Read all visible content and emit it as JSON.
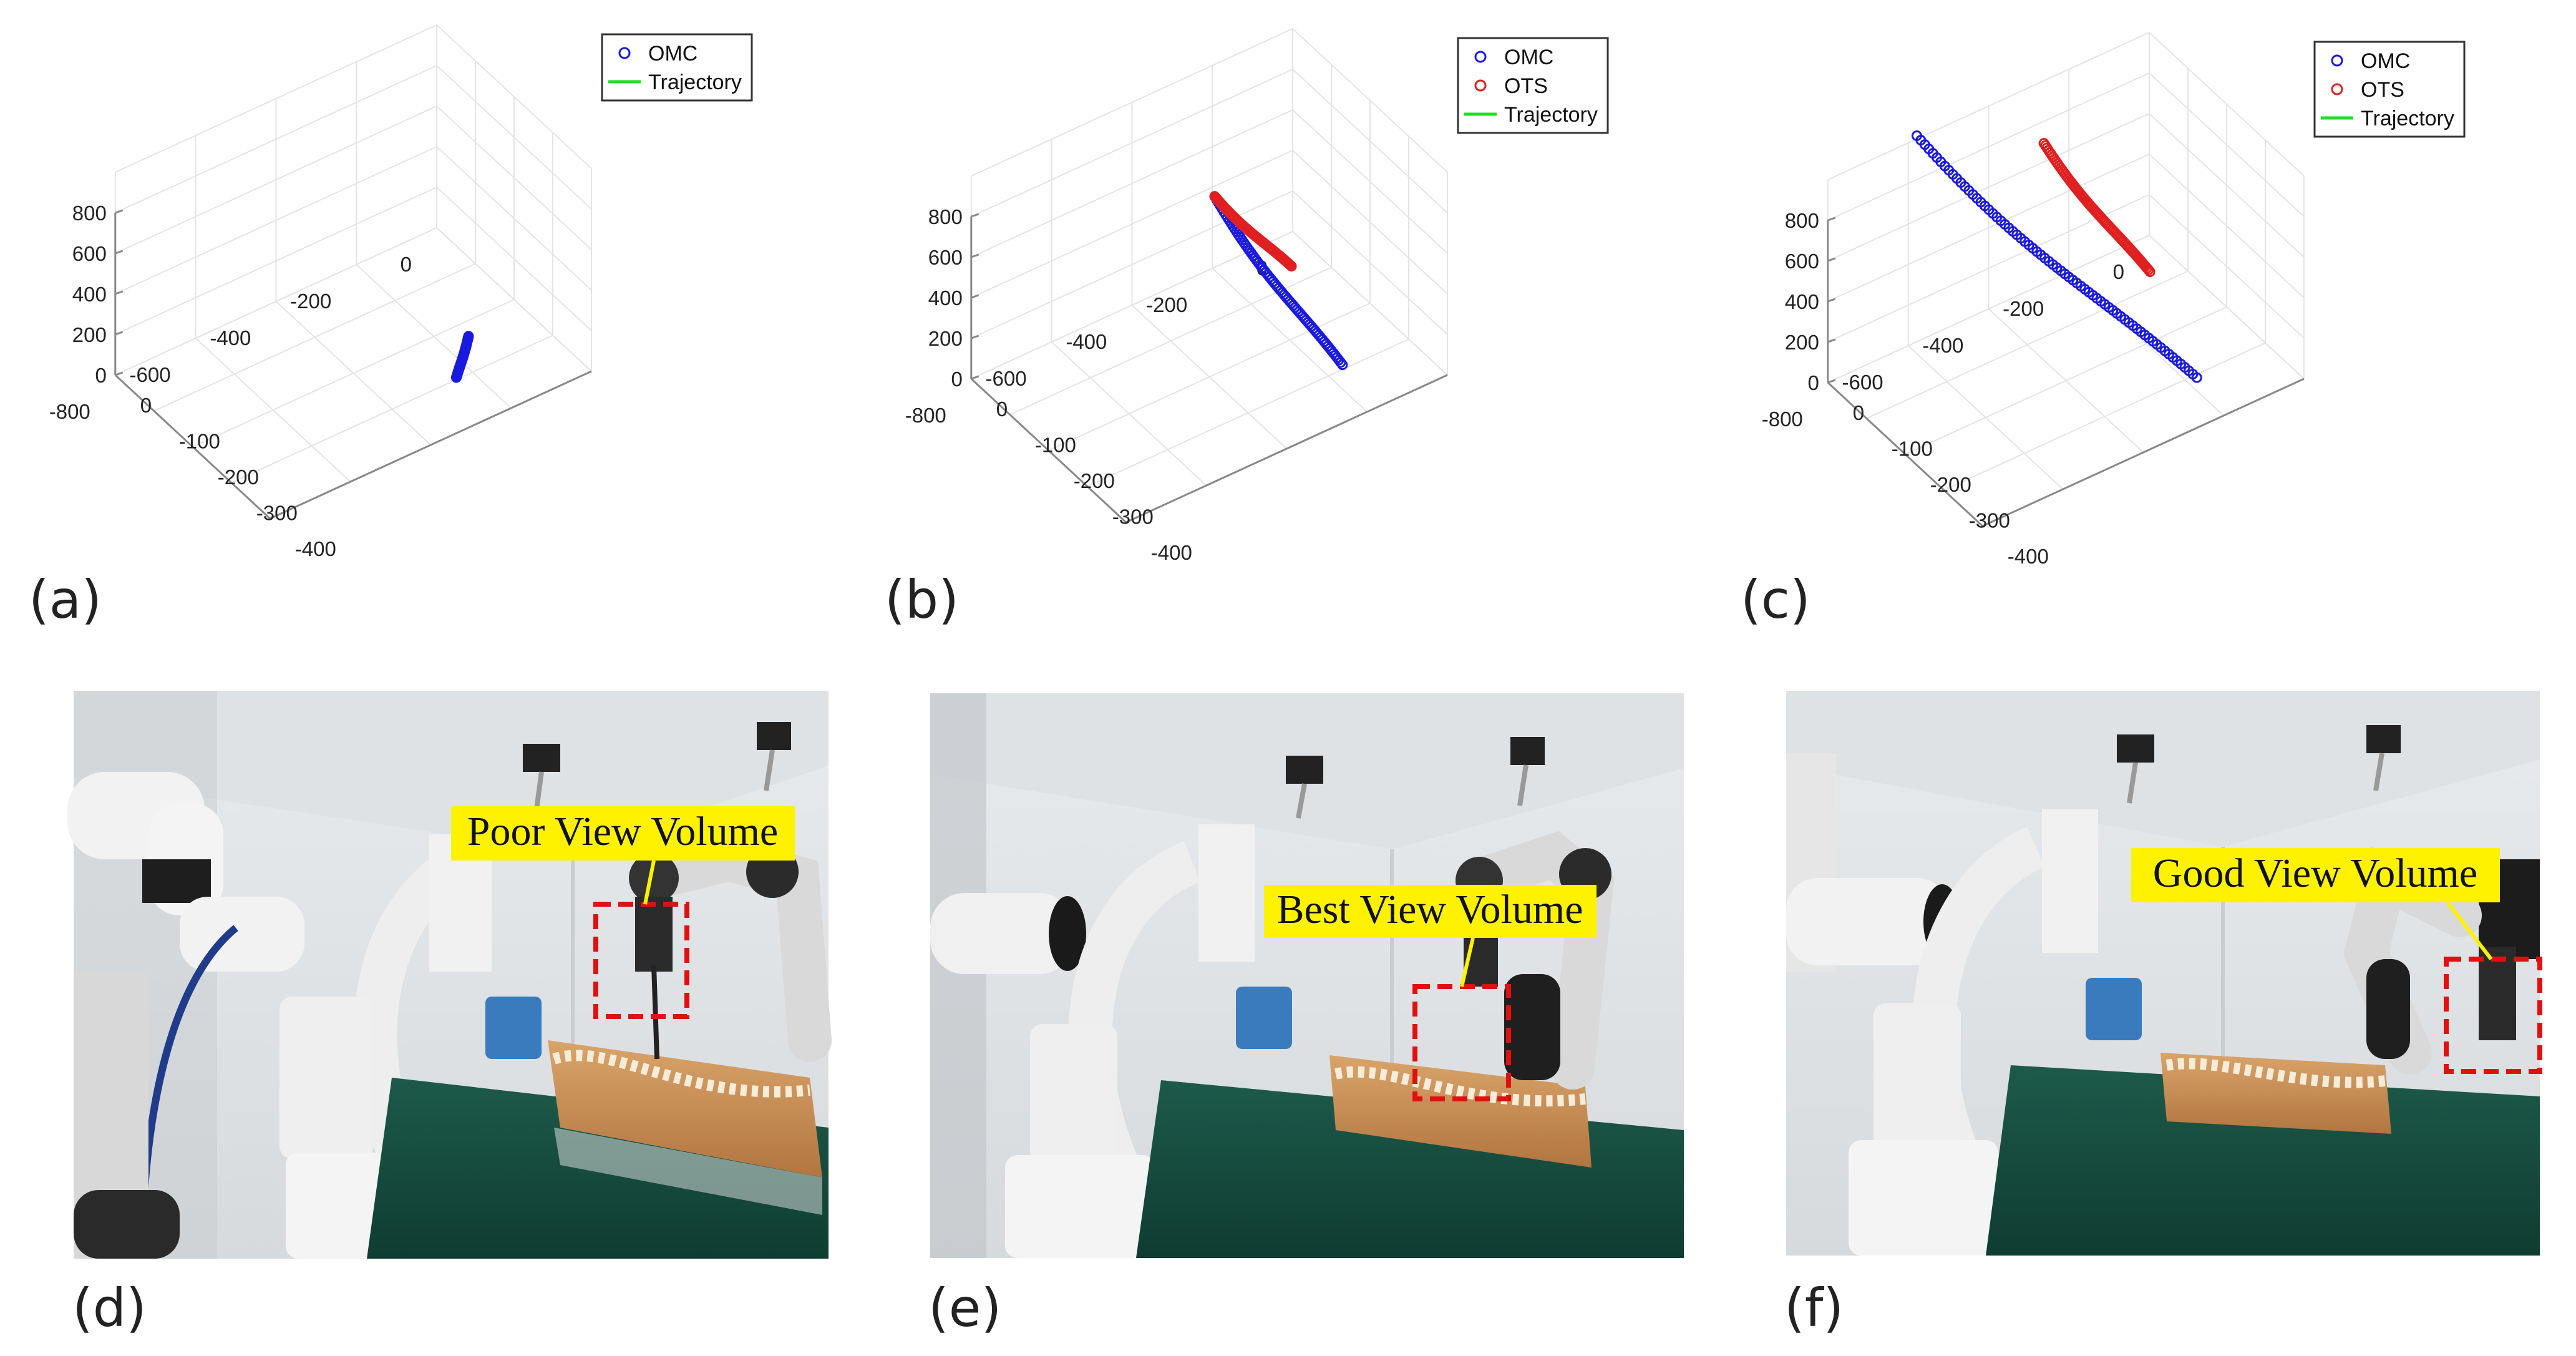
{
  "panel_labels": [
    "(a)",
    "(b)",
    "(c)",
    "(d)",
    "(e)",
    "(f)"
  ],
  "legend_labels": {
    "omc": "OMC",
    "ots": "OTS",
    "trajectory": "Trajectory"
  },
  "colors": {
    "omc": "#1a1adf",
    "ots": "#e02020",
    "trajectory": "#22dd22",
    "callout_bg": "#fff200",
    "roi_box": "#e01010",
    "grid": "#e4e4e4",
    "axis": "#888888"
  },
  "photos": [
    {
      "callout": "Poor View Volume",
      "icon": "robot-arm-photo"
    },
    {
      "callout": "Best View Volume",
      "icon": "robot-arm-photo"
    },
    {
      "callout": "Good View Volume",
      "icon": "robot-arm-photo"
    }
  ],
  "chart_data": [
    {
      "type": "scatter",
      "title": "",
      "z_ticks": [
        "0",
        "200",
        "400",
        "600",
        "800"
      ],
      "x_ticks": [
        "0",
        "-200",
        "-400",
        "-600",
        "-800"
      ],
      "y_ticks": [
        "0",
        "-100",
        "-200",
        "-300",
        "-400"
      ],
      "legend": "top-right",
      "series": [
        {
          "name": "OMC",
          "marker": "circle",
          "x": [
            -200,
            -240
          ],
          "y": [
            -290,
            -300
          ],
          "z": [
            160,
            10
          ]
        }
      ]
    },
    {
      "type": "scatter",
      "title": "",
      "z_ticks": [
        "0",
        "200",
        "400",
        "600",
        "800"
      ],
      "x_ticks": [
        "0",
        "-200",
        "-400",
        "-600",
        "-800"
      ],
      "y_ticks": [
        "0",
        "-100",
        "-200",
        "-300",
        "-400"
      ],
      "legend": "top-right",
      "series": [
        {
          "name": "OMC",
          "marker": "circle",
          "x": [
            -300,
            -160
          ],
          "y": [
            -110,
            -295
          ],
          "z": [
            640,
            10
          ]
        },
        {
          "name": "OTS",
          "marker": "circle",
          "x": [
            -300,
            -210
          ],
          "y": [
            -110,
            -215
          ],
          "z": [
            640,
            400
          ]
        }
      ]
    },
    {
      "type": "scatter",
      "title": "",
      "z_ticks": [
        "0",
        "200",
        "400",
        "600",
        "800"
      ],
      "x_ticks": [
        "0",
        "-200",
        "-400",
        "-600",
        "-800"
      ],
      "y_ticks": [
        "0",
        "-100",
        "-200",
        "-300",
        "-400"
      ],
      "legend": "top-right",
      "series": [
        {
          "name": "OMC",
          "marker": "circle",
          "x": [
            -540,
            -180
          ],
          "y": [
            40,
            -310
          ],
          "z": [
            910,
            10
          ]
        },
        {
          "name": "OTS",
          "marker": "circle",
          "x": [
            -320,
            -210
          ],
          "y": [
            -60,
            -220
          ],
          "z": [
            850,
            400
          ]
        }
      ]
    }
  ]
}
